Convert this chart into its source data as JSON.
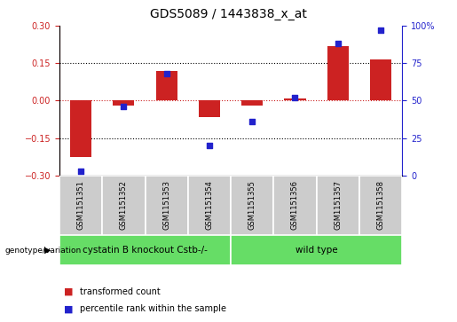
{
  "title": "GDS5089 / 1443838_x_at",
  "samples": [
    "GSM1151351",
    "GSM1151352",
    "GSM1151353",
    "GSM1151354",
    "GSM1151355",
    "GSM1151356",
    "GSM1151357",
    "GSM1151358"
  ],
  "transformed_count": [
    -0.225,
    -0.02,
    0.12,
    -0.065,
    -0.02,
    0.01,
    0.22,
    0.165
  ],
  "percentile_rank": [
    3,
    46,
    68,
    20,
    36,
    52,
    88,
    97
  ],
  "ylim_left": [
    -0.3,
    0.3
  ],
  "ylim_right": [
    0,
    100
  ],
  "yticks_left": [
    -0.3,
    -0.15,
    0,
    0.15,
    0.3
  ],
  "yticks_right": [
    0,
    25,
    50,
    75,
    100
  ],
  "hlines_black": [
    0.15,
    -0.15
  ],
  "hline_red": 0.0,
  "group1_label": "cystatin B knockout Cstb-/-",
  "group2_label": "wild type",
  "group1_count": 4,
  "group2_count": 4,
  "group_row_label": "genotype/variation",
  "legend_bar_label": "transformed count",
  "legend_dot_label": "percentile rank within the sample",
  "bar_color": "#cc2222",
  "dot_color": "#2222cc",
  "group_color": "#66dd66",
  "sample_box_color": "#cccccc",
  "bar_width": 0.5,
  "left_tick_color": "#cc2222",
  "right_tick_color": "#2222cc",
  "title_fontsize": 10,
  "tick_fontsize": 7,
  "sample_fontsize": 6,
  "group_fontsize": 7.5,
  "legend_fontsize": 7
}
